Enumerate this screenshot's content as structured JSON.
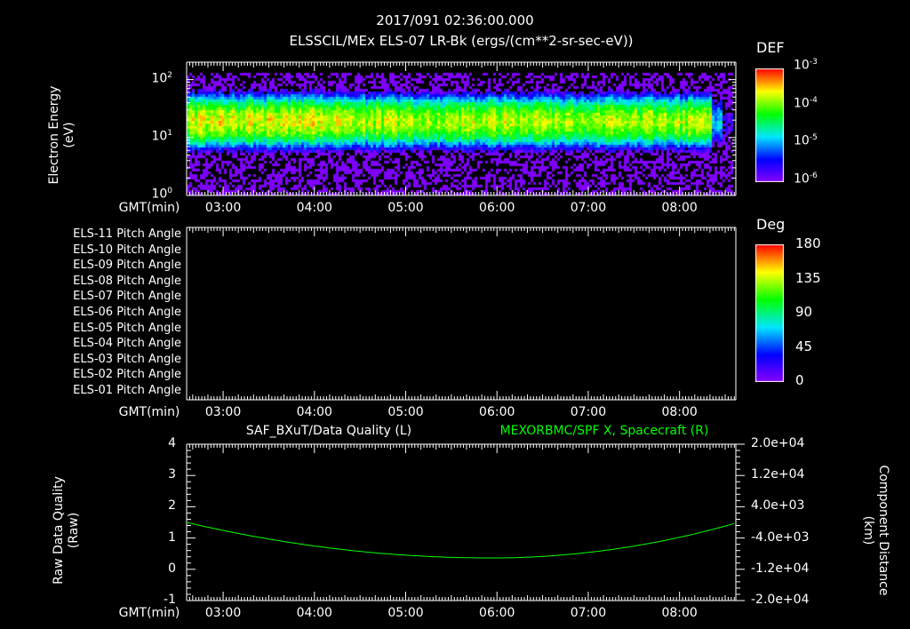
{
  "title": "2017/091 02:36:00.000",
  "chart_data": [
    {
      "type": "heatmap",
      "title": "ELSSCIL/MEx ELS-07 LR-Bk  (ergs/(cm**2-sr-sec-eV))",
      "ylabel": [
        "Electron Energy",
        "(eV)"
      ],
      "xlabel": "GMT(min)",
      "xticks": [
        "03:00",
        "04:00",
        "05:00",
        "06:00",
        "07:00",
        "08:00"
      ],
      "xlim": [
        "02:36",
        "08:37"
      ],
      "yticks": [
        "10",
        "10",
        "10"
      ],
      "ytick_exp": [
        "0",
        "1",
        "2"
      ],
      "ylim": [
        1,
        200
      ],
      "colorbar": {
        "label": "DEF",
        "ticks": [
          "10",
          "10",
          "10",
          "10"
        ],
        "tick_exp": [
          "-3",
          "-4",
          "-5",
          "-6"
        ],
        "range": [
          1e-06,
          0.001
        ]
      },
      "band_center_eV": 20,
      "band_peak_DEF": 0.0002
    },
    {
      "type": "heatmap",
      "title": "",
      "xlabel": "GMT(min)",
      "xticks": [
        "03:00",
        "04:00",
        "05:00",
        "06:00",
        "07:00",
        "08:00"
      ],
      "rows": [
        "ELS-11 Pitch Angle",
        "ELS-10 Pitch Angle",
        "ELS-09 Pitch Angle",
        "ELS-08 Pitch Angle",
        "ELS-07 Pitch Angle",
        "ELS-06 Pitch Angle",
        "ELS-05 Pitch Angle",
        "ELS-04 Pitch Angle",
        "ELS-03 Pitch Angle",
        "ELS-02 Pitch Angle",
        "ELS-01 Pitch Angle"
      ],
      "colorbar": {
        "label": "Deg",
        "ticks": [
          "180",
          "135",
          "90",
          "45",
          "0"
        ],
        "range": [
          0,
          180
        ]
      }
    },
    {
      "type": "line",
      "title_left": "SAF_BXuT/Data Quality (L)",
      "title_right": "MEXORBMC/SPF X, Spacecraft (R)",
      "ylabel_left": [
        "Raw Data Quality",
        "(Raw)"
      ],
      "ylabel_right": [
        "Component Distance",
        "(km)"
      ],
      "xlabel": "GMT(min)",
      "xticks": [
        "03:00",
        "04:00",
        "05:00",
        "06:00",
        "07:00",
        "08:00"
      ],
      "yticks_left": [
        "4",
        "3",
        "2",
        "1",
        "0",
        "-1"
      ],
      "ylim_left": [
        -1,
        4
      ],
      "yticks_right": [
        "2.0e+04",
        "1.2e+04",
        "4.0e+03",
        "-4.0e+03",
        "-1.2e+04",
        "-2.0e+04"
      ],
      "ylim_right": [
        -20000,
        20000
      ],
      "series": [
        {
          "name": "MEXORBMC/SPF X, Spacecraft (R)",
          "color": "#00ff00",
          "x_min": [
            0,
            60,
            120,
            180,
            234,
            300,
            360,
            361
          ],
          "y_km": [
            0,
            -4200,
            -7300,
            -8900,
            -9100,
            -8000,
            -500,
            -300
          ]
        }
      ]
    }
  ]
}
